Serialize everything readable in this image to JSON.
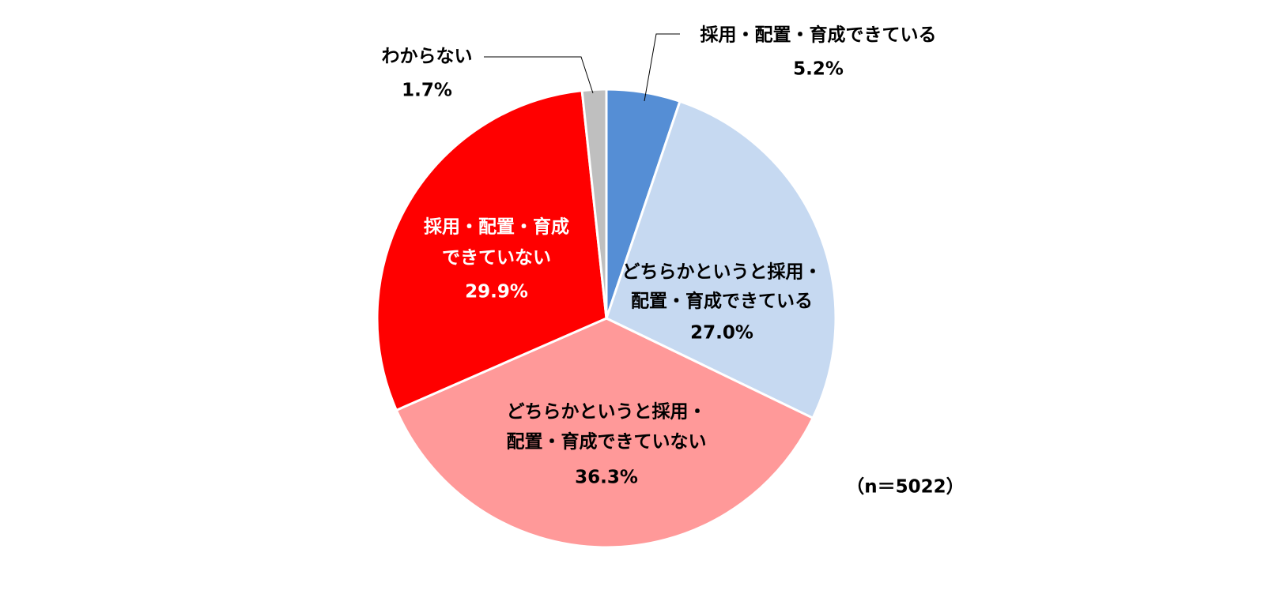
{
  "chart_data": {
    "type": "pie",
    "categories": [
      [
        "採用・配置・育成できている"
      ],
      [
        "どちらかというと採用・",
        "配置・育成できている"
      ],
      [
        "どちらかというと採用・",
        "配置・育成できていない"
      ],
      [
        "採用・配置・育成",
        "できていない"
      ],
      [
        "わからない"
      ]
    ],
    "values": [
      5.2,
      27.0,
      36.3,
      29.9,
      1.7
    ],
    "value_labels": [
      "5.2%",
      "27.0%",
      "36.3%",
      "29.9%",
      "1.7%"
    ],
    "colors": [
      "#558ed5",
      "#c6d9f1",
      "#ff9999",
      "#ff0000",
      "#bfbfbf"
    ],
    "note": "（n＝5022）"
  }
}
